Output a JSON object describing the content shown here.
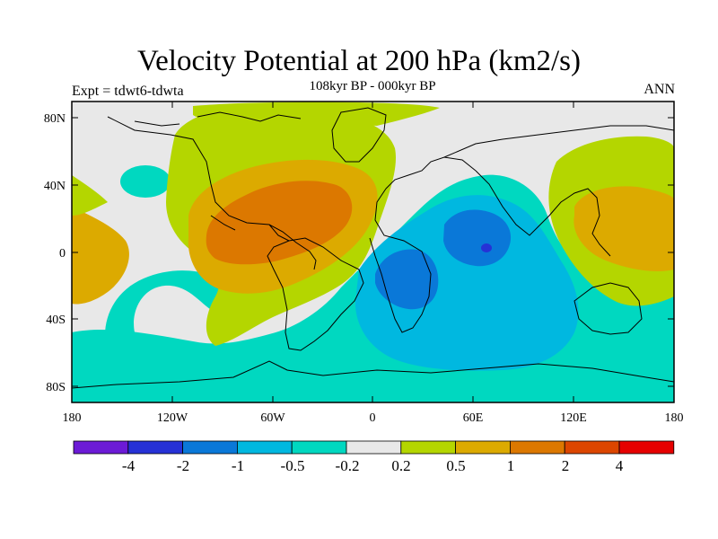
{
  "header": {
    "title": "Velocity Potential at 200 hPa (km2/s)",
    "subtitle": "108kyr BP - 000kyr BP",
    "left_label": "Expt = tdwt6-tdwta",
    "right_label": "ANN"
  },
  "axes": {
    "x_ticks": [
      "180",
      "120W",
      "60W",
      "0",
      "60E",
      "120E",
      "180"
    ],
    "y_ticks": [
      "80N",
      "40N",
      "0",
      "40S",
      "80S"
    ]
  },
  "colorbar": {
    "colors": [
      "#6c1bd6",
      "#2631d6",
      "#0a78d8",
      "#00b8e0",
      "#00d8c0",
      "#e8e8e8",
      "#b4d600",
      "#dcaa00",
      "#dc7800",
      "#dc4600",
      "#e60000"
    ],
    "labels": [
      "-4",
      "-2",
      "-1",
      "-0.5",
      "-0.2",
      "0.2",
      "0.5",
      "1",
      "2",
      "4"
    ]
  },
  "map": {
    "background_color": "#e8e8e8",
    "coastline_color": "#000000"
  }
}
